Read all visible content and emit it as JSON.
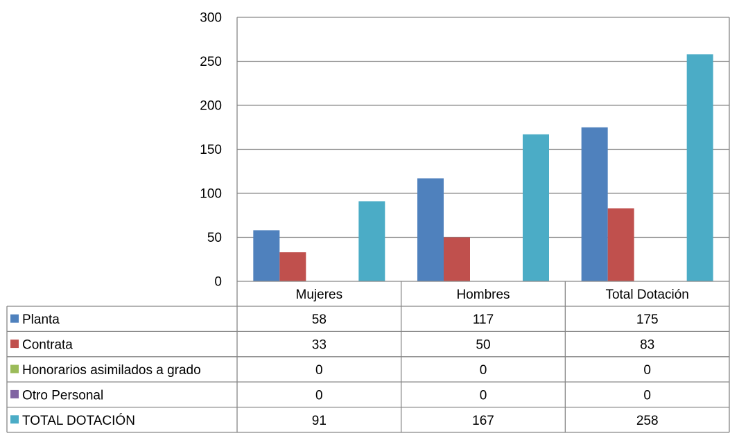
{
  "chart_data": {
    "type": "bar",
    "categories": [
      "Mujeres",
      "Hombres",
      "Total Dotación"
    ],
    "series": [
      {
        "name": "Planta",
        "values": [
          58,
          117,
          175
        ],
        "color": "#4F81BD"
      },
      {
        "name": "Contrata",
        "values": [
          33,
          50,
          83
        ],
        "color": "#C0504D"
      },
      {
        "name": "Honorarios asimilados a grado",
        "values": [
          0,
          0,
          0
        ],
        "color": "#9BBB59"
      },
      {
        "name": "Otro Personal",
        "values": [
          0,
          0,
          0
        ],
        "color": "#8064A2"
      },
      {
        "name": "TOTAL DOTACIÓN",
        "values": [
          91,
          167,
          258
        ],
        "color": "#4BACC6"
      }
    ],
    "yticks": [
      0,
      50,
      100,
      150,
      200,
      250,
      300
    ],
    "ylim": [
      0,
      300
    ],
    "grid": true,
    "legend": "data-table"
  }
}
